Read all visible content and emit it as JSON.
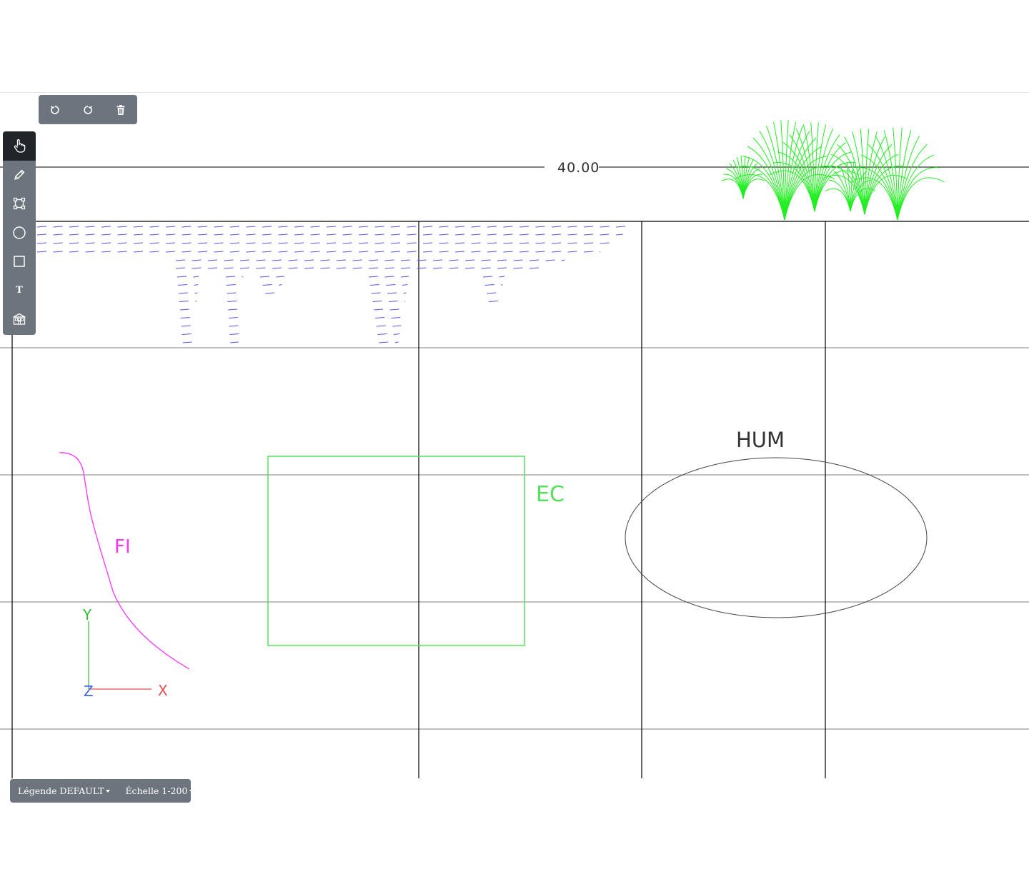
{
  "toolbar": {
    "undo_icon": "undo-icon",
    "redo_icon": "redo-icon",
    "delete_icon": "trash-icon"
  },
  "tools": [
    {
      "name": "pointer",
      "icon": "hand-pointer-icon",
      "active": true
    },
    {
      "name": "pencil",
      "icon": "pencil-icon"
    },
    {
      "name": "polygon",
      "icon": "vector-square-icon"
    },
    {
      "name": "circle",
      "icon": "circle-icon"
    },
    {
      "name": "rectangle",
      "icon": "square-icon"
    },
    {
      "name": "text",
      "icon": "text-icon",
      "label": "T"
    },
    {
      "name": "library",
      "icon": "building-icon"
    }
  ],
  "canvas": {
    "level_label": "40.00",
    "labels": {
      "hum": "HUM",
      "ec": "EC",
      "fi": "FI",
      "axis_x": "X",
      "axis_y": "Y",
      "axis_z": "Z"
    },
    "colors": {
      "grid": "#000000",
      "fi_curve": "#ff33ff",
      "ec_rect": "#55e05a",
      "vegetation": "#22ee22",
      "water_hatch": "#5555ee",
      "axis_x": "#e05050",
      "axis_y": "#33bb33",
      "axis_z": "#4466dd"
    }
  },
  "footer": {
    "legend_label": "Légende DEFAULT",
    "scale_label": "Échelle 1-200"
  }
}
